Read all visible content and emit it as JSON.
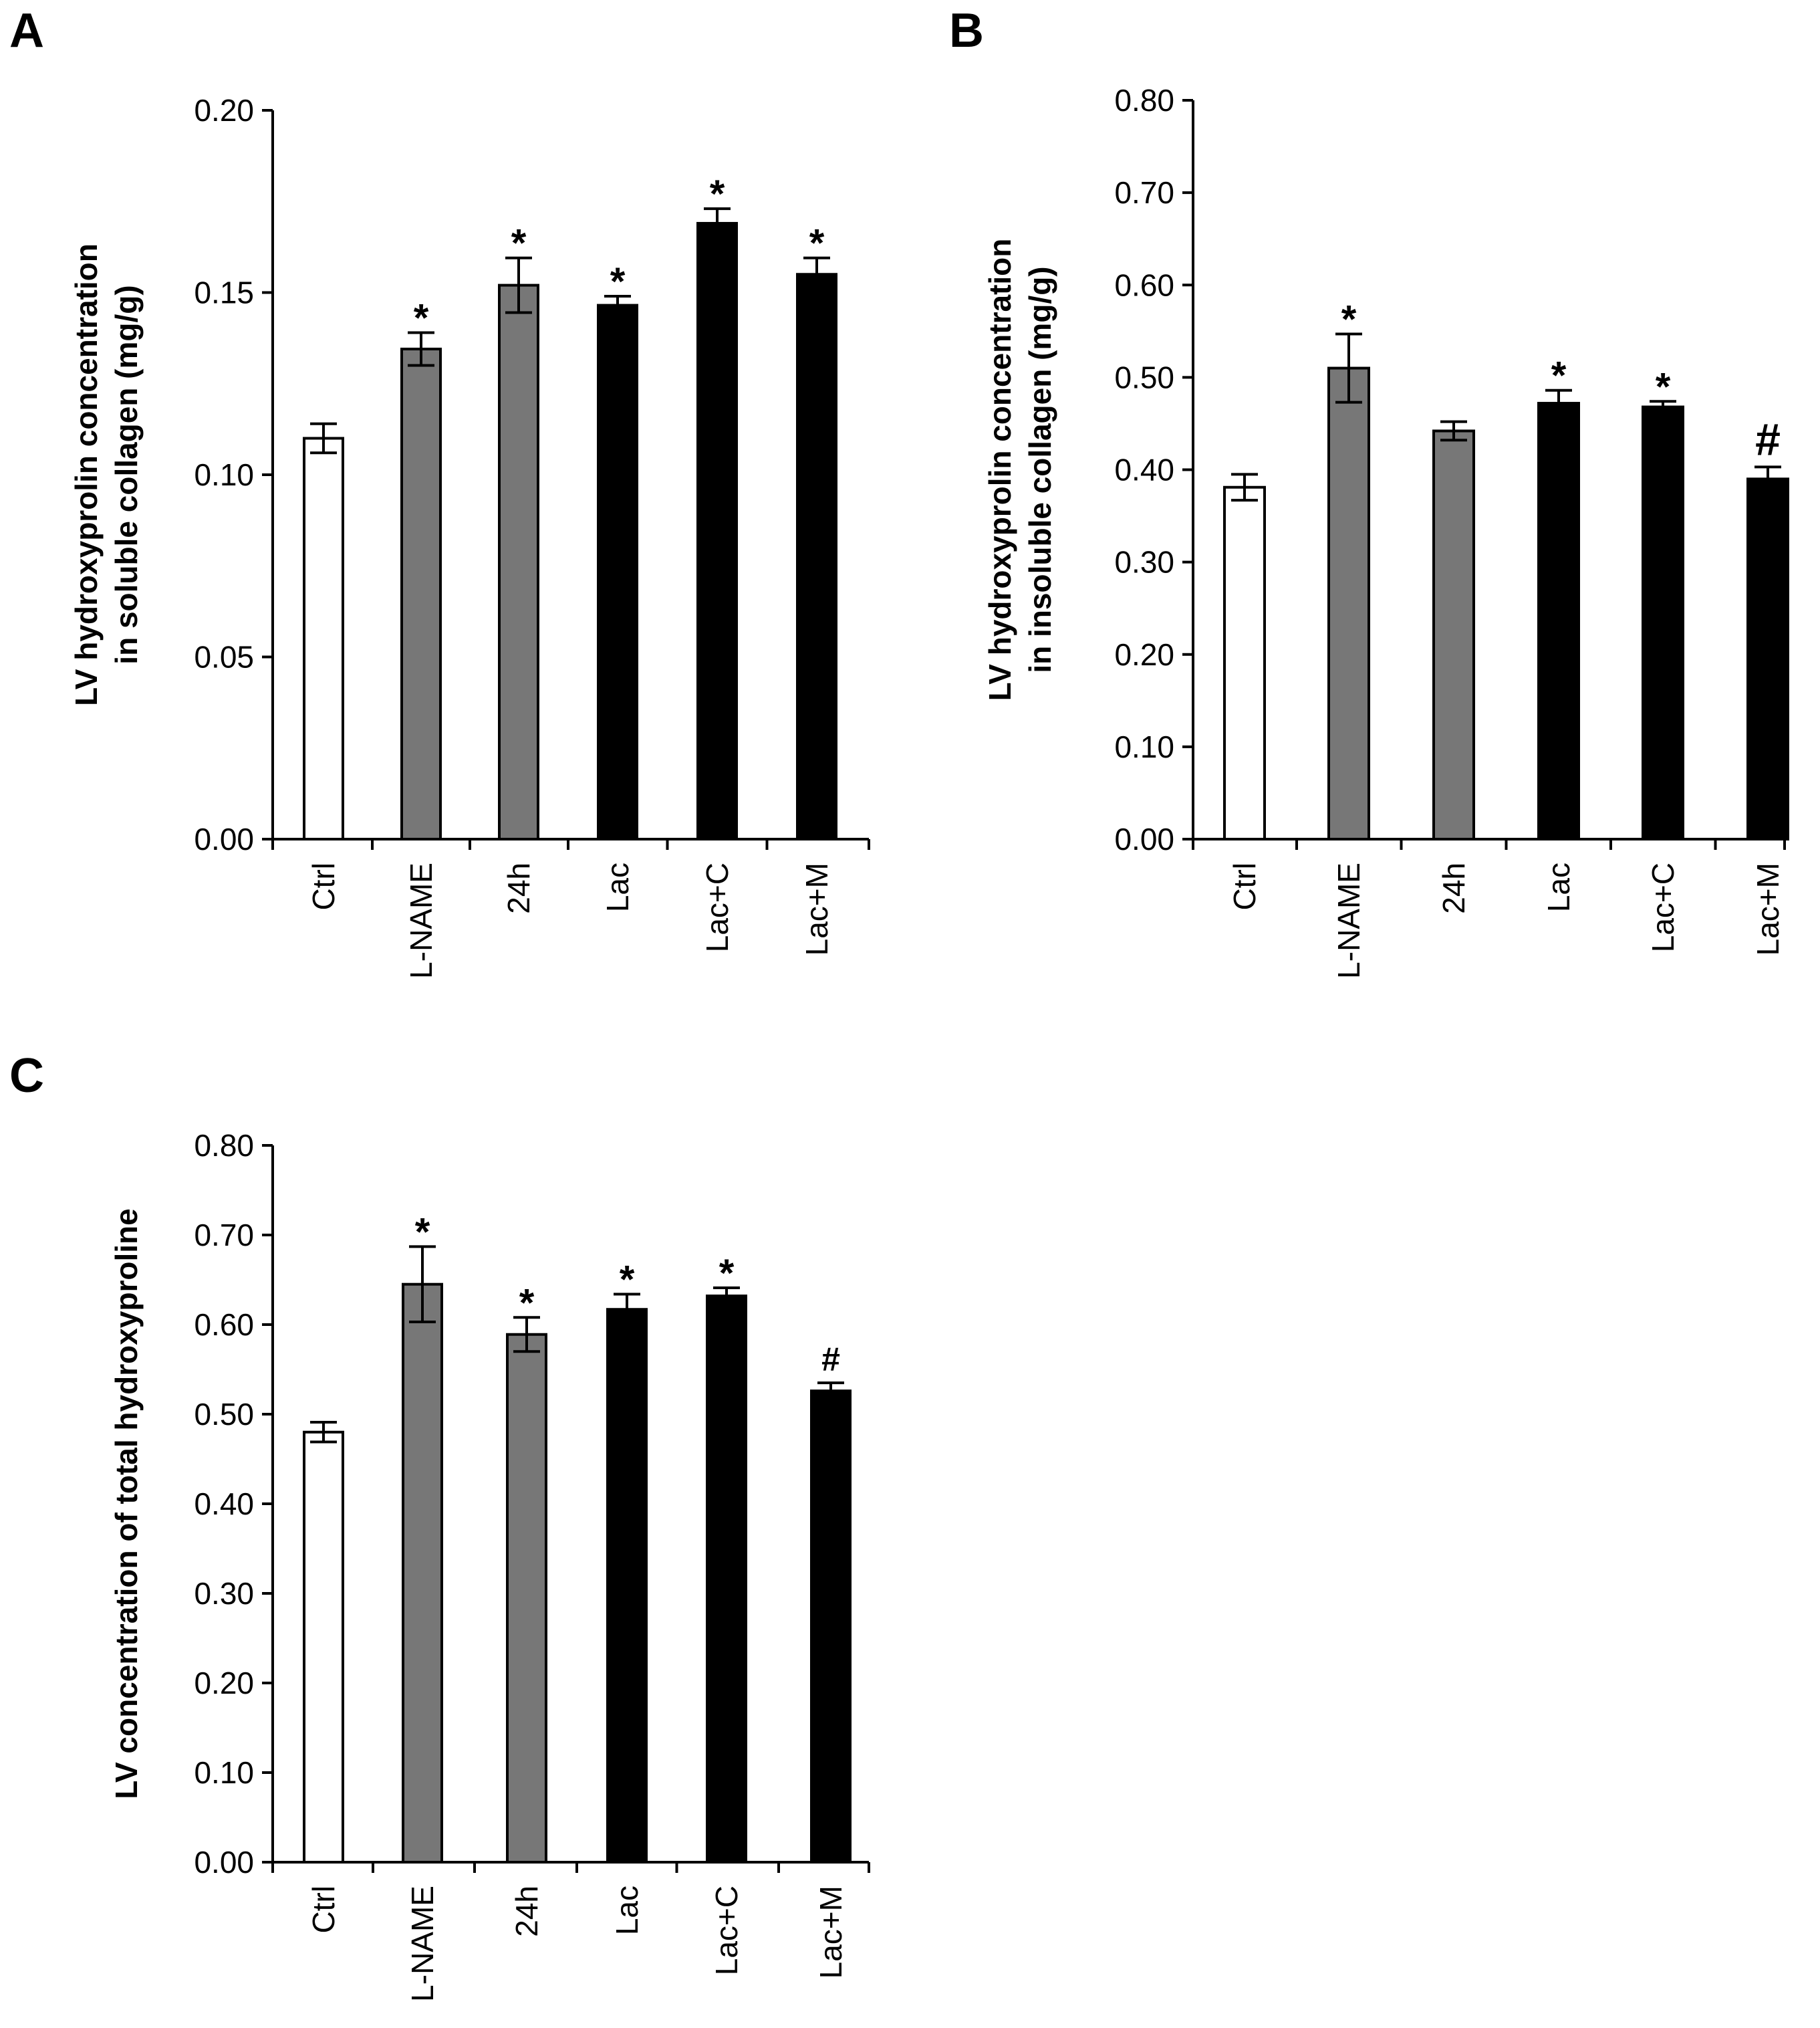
{
  "colors": {
    "control": "#ffffff",
    "lname_group": "#777777",
    "lac_group": "#000000",
    "outline": "#000000"
  },
  "chart_data": [
    {
      "id": "A",
      "panel_label": "A",
      "type": "bar",
      "ylabel_lines": [
        "LV hydroxyprolin concentration",
        "in soluble collagen (mg/g)"
      ],
      "ylim": [
        0,
        0.2
      ],
      "yticks": [
        "0.00",
        "0.05",
        "0.10",
        "0.15",
        "0.20"
      ],
      "categories": [
        "Ctrl",
        "L-NAME",
        "24h",
        "Lac",
        "Lac+C",
        "Lac+M"
      ],
      "values": [
        0.11,
        0.1345,
        0.152,
        0.1465,
        0.169,
        0.155
      ],
      "errors": [
        0.004,
        0.0045,
        0.0075,
        0.0025,
        0.004,
        0.0045
      ],
      "fills": [
        "control",
        "lname_group",
        "lname_group",
        "lac_group",
        "lac_group",
        "lac_group"
      ],
      "markers": [
        "",
        "*",
        "*",
        "*",
        "*",
        "*"
      ]
    },
    {
      "id": "B",
      "panel_label": "B",
      "type": "bar",
      "ylabel_lines": [
        "LV hydroxyprolin concentration",
        "in insoluble collagen (mg/g)"
      ],
      "ylim": [
        0,
        0.8
      ],
      "yticks": [
        "0.00",
        "0.10",
        "0.20",
        "0.30",
        "0.40",
        "0.50",
        "0.60",
        "0.70",
        "0.80"
      ],
      "categories": [
        "Ctrl",
        "L-NAME",
        "24h",
        "Lac",
        "Lac+C",
        "Lac+M"
      ],
      "values": [
        0.381,
        0.51,
        0.442,
        0.472,
        0.468,
        0.39
      ],
      "errors": [
        0.014,
        0.037,
        0.01,
        0.014,
        0.006,
        0.013
      ],
      "fills": [
        "control",
        "lname_group",
        "lname_group",
        "lac_group",
        "lac_group",
        "lac_group"
      ],
      "markers": [
        "",
        "*",
        "",
        "*",
        "*",
        "#"
      ]
    },
    {
      "id": "C",
      "panel_label": "C",
      "type": "bar",
      "ylabel_lines": [
        "LV concentration of total hydroxyproline"
      ],
      "ylim": [
        0,
        0.8
      ],
      "yticks": [
        "0.00",
        "0.10",
        "0.20",
        "0.30",
        "0.40",
        "0.50",
        "0.60",
        "0.70",
        "0.80"
      ],
      "categories": [
        "Ctrl",
        "L-NAME",
        "24h",
        "Lac",
        "Lac+C",
        "Lac+M"
      ],
      "values": [
        0.48,
        0.645,
        0.589,
        0.617,
        0.632,
        0.526
      ],
      "errors": [
        0.011,
        0.042,
        0.019,
        0.017,
        0.009,
        0.009
      ],
      "fills": [
        "control",
        "lname_group",
        "lname_group",
        "lac_group",
        "lac_group",
        "lac_group"
      ],
      "markers": [
        "",
        "*",
        "*",
        "*",
        "*",
        "#"
      ]
    }
  ]
}
